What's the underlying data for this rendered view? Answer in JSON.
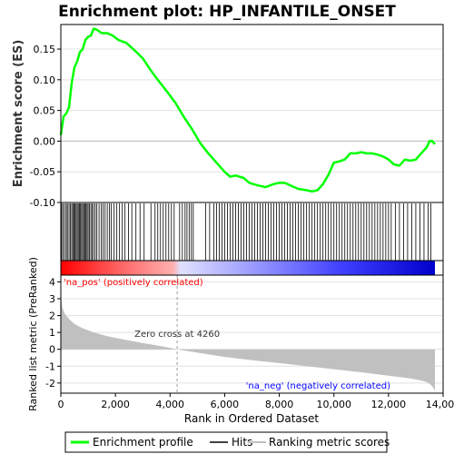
{
  "chart_data": {
    "type": "line",
    "title": "Enrichment plot: HP_INFANTILE_ONSET",
    "top_panel": {
      "ylabel": "Enrichment score (ES)",
      "ylim": [
        -0.1,
        0.19
      ],
      "yticks": [
        -0.1,
        -0.05,
        0.0,
        0.05,
        0.1,
        0.15
      ],
      "ytick_labels": [
        "-0.10",
        "-0.05",
        "0.00",
        "0.05",
        "0.10",
        "0.15"
      ],
      "series": [
        {
          "name": "Enrichment profile",
          "color": "#00ff00",
          "x": [
            0,
            100,
            200,
            300,
            400,
            500,
            600,
            700,
            800,
            900,
            1000,
            1100,
            1200,
            1300,
            1500,
            1700,
            1900,
            2100,
            2400,
            2700,
            3000,
            3300,
            3600,
            3900,
            4200,
            4500,
            4800,
            5100,
            5400,
            5700,
            6000,
            6200,
            6400,
            6700,
            6900,
            7200,
            7500,
            7800,
            8000,
            8200,
            8400,
            8700,
            9000,
            9200,
            9400,
            9600,
            9800,
            10000,
            10200,
            10400,
            10600,
            10800,
            11000,
            11200,
            11400,
            11600,
            11800,
            12000,
            12200,
            12400,
            12600,
            12800,
            13000,
            13200,
            13400,
            13500,
            13600,
            13700
          ],
          "y": [
            0.01,
            0.04,
            0.045,
            0.055,
            0.095,
            0.12,
            0.13,
            0.145,
            0.15,
            0.165,
            0.17,
            0.172,
            0.183,
            0.182,
            0.176,
            0.176,
            0.172,
            0.165,
            0.16,
            0.148,
            0.135,
            0.115,
            0.097,
            0.08,
            0.062,
            0.04,
            0.02,
            -0.003,
            -0.02,
            -0.035,
            -0.05,
            -0.058,
            -0.056,
            -0.06,
            -0.068,
            -0.072,
            -0.075,
            -0.07,
            -0.068,
            -0.068,
            -0.072,
            -0.078,
            -0.08,
            -0.082,
            -0.08,
            -0.07,
            -0.055,
            -0.035,
            -0.033,
            -0.03,
            -0.02,
            -0.02,
            -0.018,
            -0.02,
            -0.02,
            -0.022,
            -0.025,
            -0.03,
            -0.038,
            -0.04,
            -0.03,
            -0.032,
            -0.03,
            -0.02,
            -0.01,
            0.0,
            0.0,
            -0.005
          ]
        }
      ]
    },
    "hits_panel": {
      "series_name": "Hits",
      "hit_positions": [
        30,
        80,
        140,
        200,
        240,
        300,
        350,
        400,
        440,
        480,
        520,
        560,
        600,
        640,
        680,
        720,
        760,
        800,
        840,
        880,
        920,
        960,
        1000,
        1050,
        1100,
        1150,
        1200,
        1260,
        1320,
        1400,
        1480,
        1550,
        1620,
        1700,
        1780,
        1850,
        1950,
        2050,
        2150,
        2250,
        2350,
        2480,
        2600,
        2750,
        2900,
        3050,
        3300,
        3450,
        3550,
        3650,
        3750,
        3850,
        3950,
        4050,
        4150,
        4350,
        4450,
        4550,
        4620,
        4700,
        4780,
        4850,
        5300,
        5450,
        5600,
        5700,
        5800,
        5900,
        6000,
        6100,
        6200,
        6300,
        6400,
        6500,
        6600,
        6700,
        6800,
        6900,
        7000,
        7100,
        7200,
        7300,
        7400,
        7500,
        7600,
        7700,
        7800,
        7900,
        8000,
        8100,
        8200,
        8300,
        8400,
        8500,
        8600,
        8700,
        8800,
        8900,
        9000,
        9100,
        9200,
        9300,
        9400,
        9500,
        9600,
        9700,
        9800,
        9900,
        10000,
        10100,
        10200,
        10300,
        10400,
        10500,
        10600,
        10700,
        10800,
        10900,
        11000,
        11100,
        11200,
        11300,
        11400,
        11500,
        11600,
        11700,
        11800,
        11900,
        12000,
        12100,
        12250,
        12400,
        12550,
        12700,
        12850,
        13000,
        13150,
        13300,
        13450,
        13550
      ]
    },
    "rank_panel": {
      "ylabel": "Ranked list metric (PreRanked)",
      "ylim": [
        -2.6,
        4.4
      ],
      "yticks": [
        -2,
        -1,
        0,
        1,
        2,
        3,
        4
      ],
      "ytick_labels": [
        "-2",
        "-1",
        "0",
        "1",
        "2",
        "3",
        "4"
      ],
      "series_name": "Ranking metric scores",
      "x": [
        0,
        50,
        150,
        300,
        500,
        800,
        1200,
        1700,
        2300,
        3000,
        3700,
        4260,
        5000,
        6000,
        7000,
        8000,
        9000,
        10000,
        11000,
        12000,
        12800,
        13200,
        13400,
        13550,
        13650,
        13700
      ],
      "y": [
        3.3,
        2.5,
        2.1,
        1.8,
        1.5,
        1.25,
        1.0,
        0.78,
        0.58,
        0.38,
        0.18,
        0.0,
        -0.2,
        -0.45,
        -0.65,
        -0.82,
        -1.0,
        -1.18,
        -1.36,
        -1.56,
        -1.72,
        -1.85,
        -1.95,
        -2.1,
        -2.3,
        -2.45
      ],
      "zero_cross_label": "Zero cross at 4260",
      "zero_cross_x": 4260,
      "pos_label": "'na_pos' (positively correlated)",
      "neg_label": "'na_neg' (negatively correlated)"
    },
    "xlabel": "Rank in Ordered Dataset",
    "xlim": [
      0,
      14000
    ],
    "xticks": [
      0,
      2000,
      4000,
      6000,
      8000,
      10000,
      12000,
      14000
    ],
    "xtick_labels": [
      "0",
      "2,000",
      "4,000",
      "6,000",
      "8,000",
      "10,000",
      "12,000",
      "14,000"
    ],
    "legend": {
      "placement": "bottom",
      "entries": [
        {
          "label": "Enrichment profile",
          "color": "#00ff00"
        },
        {
          "label": "Hits",
          "color": "#000000"
        },
        {
          "label": "Ranking metric scores",
          "color": "#c0c0c0"
        }
      ]
    },
    "colors": {
      "profile": "#00ff00",
      "hits": "#000000",
      "metric_fill": "#c0c0c0",
      "pos_text": "#ff0000",
      "neg_text": "#0000ff",
      "zero_text": "#333333",
      "grid": "#e0e0e0"
    }
  }
}
